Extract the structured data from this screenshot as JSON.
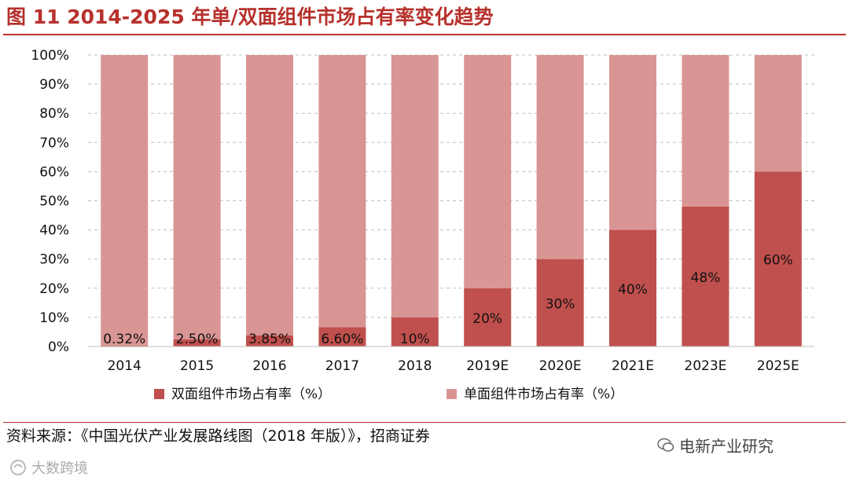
{
  "header": {
    "title": "图 11 2014-2025 年单/双面组件市场占有率变化趋势"
  },
  "footer": {
    "source": "资料来源：《中国光伏产业发展路线图（2018 年版）》，招商证券",
    "watermark_right": "电新产业研究",
    "watermark_left": "大数跨境"
  },
  "colors": {
    "bifacial": "#c0504d",
    "monofacial": "#d99594",
    "title": "#b7312c"
  },
  "chart_data": {
    "type": "bar",
    "stacked": true,
    "categories": [
      "2014",
      "2015",
      "2016",
      "2017",
      "2018",
      "2019E",
      "2020E",
      "2021E",
      "2023E",
      "2025E"
    ],
    "series": [
      {
        "name": "双面组件市场占有率（%）",
        "values": [
          0.32,
          2.5,
          3.85,
          6.6,
          10,
          20,
          30,
          40,
          48,
          60
        ]
      },
      {
        "name": "单面组件市场占有率（%）",
        "values": [
          99.68,
          97.5,
          96.15,
          93.4,
          90,
          80,
          70,
          60,
          52,
          40
        ]
      }
    ],
    "data_labels": [
      "0.32%",
      "2.50%",
      "3.85%",
      "6.60%",
      "10%",
      "20%",
      "30%",
      "40%",
      "48%",
      "60%"
    ],
    "yticks": [
      "0%",
      "10%",
      "20%",
      "30%",
      "40%",
      "50%",
      "60%",
      "70%",
      "80%",
      "90%",
      "100%"
    ],
    "ylim": [
      0,
      100
    ],
    "grid": true,
    "legend_position": "bottom"
  }
}
